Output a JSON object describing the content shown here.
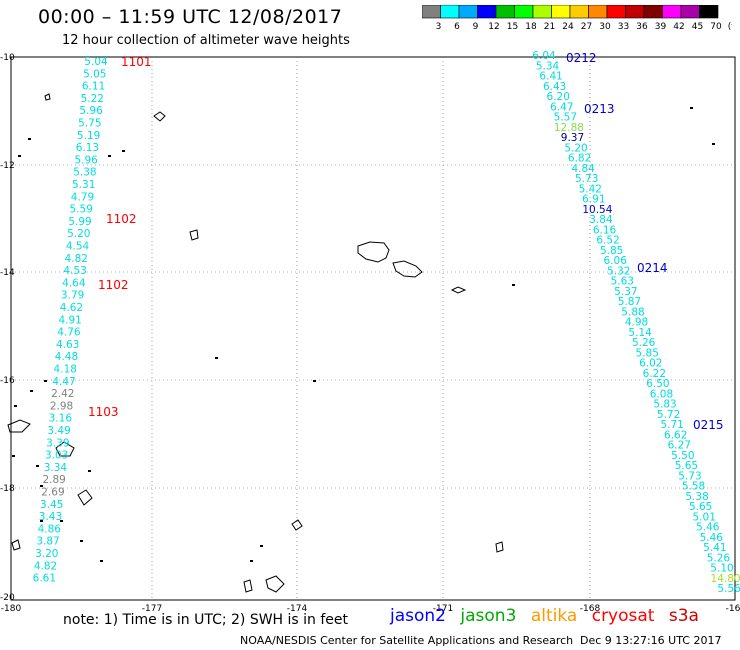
{
  "header": {
    "title": "00:00 – 11:59 UTC 12/08/2017",
    "subtitle": "12 hour collection of altimeter wave heights"
  },
  "colorbar": {
    "colors": [
      "#808080",
      "#00ffff",
      "#00aaff",
      "#0000ff",
      "#00c000",
      "#00ff00",
      "#aaff00",
      "#ffff00",
      "#ffcc00",
      "#ff8800",
      "#ff0000",
      "#c00000",
      "#800000",
      "#ff00ff",
      "#aa00aa",
      "#000000"
    ],
    "labels": [
      "3",
      "6",
      "9",
      "12",
      "15",
      "18",
      "21",
      "24",
      "27",
      "30",
      "33",
      "36",
      "39",
      "42",
      "45",
      "70",
      "(ft)"
    ]
  },
  "map": {
    "x_ticks": [
      "-180",
      "-177",
      "-174",
      "-171",
      "-168",
      "-16"
    ],
    "y_ticks": [
      "-10",
      "-12",
      "-14",
      "-16",
      "-18",
      "-20"
    ]
  },
  "tracks": [
    {
      "color": "#00dddd",
      "values": [
        {
          "t": "5.04",
          "c": "#00dddd"
        },
        {
          "t": "5.05",
          "c": "#00dddd"
        },
        {
          "t": "6.11",
          "c": "#00dddd"
        },
        {
          "t": "5.22",
          "c": "#00dddd"
        },
        {
          "t": "5.96",
          "c": "#00dddd"
        },
        {
          "t": "5.75",
          "c": "#00dddd"
        },
        {
          "t": "5.19",
          "c": "#00dddd"
        },
        {
          "t": "6.13",
          "c": "#00dddd"
        },
        {
          "t": "5.96",
          "c": "#00dddd"
        },
        {
          "t": "5.38",
          "c": "#00dddd"
        },
        {
          "t": "5.31",
          "c": "#00dddd"
        },
        {
          "t": "4.79",
          "c": "#00dddd"
        },
        {
          "t": "5.59",
          "c": "#00dddd"
        },
        {
          "t": "5.99",
          "c": "#00dddd"
        },
        {
          "t": "5.20",
          "c": "#00dddd"
        },
        {
          "t": "4.54",
          "c": "#00dddd"
        },
        {
          "t": "4.82",
          "c": "#00dddd"
        },
        {
          "t": "4.53",
          "c": "#00dddd"
        },
        {
          "t": "4.64",
          "c": "#00dddd"
        },
        {
          "t": "3.79",
          "c": "#00dddd"
        },
        {
          "t": "4.62",
          "c": "#00dddd"
        },
        {
          "t": "4.91",
          "c": "#00dddd"
        },
        {
          "t": "4.76",
          "c": "#00dddd"
        },
        {
          "t": "4.63",
          "c": "#00dddd"
        },
        {
          "t": "4.48",
          "c": "#00dddd"
        },
        {
          "t": "4.18",
          "c": "#00dddd"
        },
        {
          "t": "4.47",
          "c": "#00dddd"
        },
        {
          "t": "2.42",
          "c": "#808080"
        },
        {
          "t": "2.98",
          "c": "#808080"
        },
        {
          "t": "3.16",
          "c": "#00dddd"
        },
        {
          "t": "3.49",
          "c": "#00dddd"
        },
        {
          "t": "3.39",
          "c": "#00dddd"
        },
        {
          "t": "3.03",
          "c": "#00dddd"
        },
        {
          "t": "3.34",
          "c": "#00dddd"
        },
        {
          "t": "2.89",
          "c": "#808080"
        },
        {
          "t": "2.69",
          "c": "#808080"
        },
        {
          "t": "3.45",
          "c": "#00dddd"
        },
        {
          "t": "3.43",
          "c": "#00dddd"
        },
        {
          "t": "4.86",
          "c": "#00dddd"
        },
        {
          "t": "3.87",
          "c": "#00dddd"
        },
        {
          "t": "3.20",
          "c": "#00dddd"
        },
        {
          "t": "4.82",
          "c": "#00dddd"
        },
        {
          "t": "6.61",
          "c": "#00dddd"
        }
      ],
      "labels": [
        {
          "t": "1101",
          "c": "#ff0000"
        },
        {
          "t": "1102",
          "c": "#ff0000"
        },
        {
          "t": "1102",
          "c": "#ff0000"
        },
        {
          "t": "1103",
          "c": "#ff0000"
        }
      ]
    },
    {
      "color": "#00dddd",
      "values": [
        {
          "t": "6.04",
          "c": "#00dddd"
        },
        {
          "t": "5.34",
          "c": "#00dddd"
        },
        {
          "t": "6.41",
          "c": "#00dddd"
        },
        {
          "t": "6.43",
          "c": "#00dddd"
        },
        {
          "t": "6.20",
          "c": "#00dddd"
        },
        {
          "t": "6.47",
          "c": "#00dddd"
        },
        {
          "t": "5.57",
          "c": "#00dddd"
        },
        {
          "t": "12.88",
          "c": "#88dd44"
        },
        {
          "t": "9.37",
          "c": "#000080"
        },
        {
          "t": "5.20",
          "c": "#00dddd"
        },
        {
          "t": "6.82",
          "c": "#00dddd"
        },
        {
          "t": "4.84",
          "c": "#00dddd"
        },
        {
          "t": "5.73",
          "c": "#00dddd"
        },
        {
          "t": "5.42",
          "c": "#00dddd"
        },
        {
          "t": "6.91",
          "c": "#00dddd"
        },
        {
          "t": "10.54",
          "c": "#0000cc"
        },
        {
          "t": "3.84",
          "c": "#00dddd"
        },
        {
          "t": "6.16",
          "c": "#00dddd"
        },
        {
          "t": "6.52",
          "c": "#00dddd"
        },
        {
          "t": "5.85",
          "c": "#00dddd"
        },
        {
          "t": "6.06",
          "c": "#00dddd"
        },
        {
          "t": "5.32",
          "c": "#00dddd"
        },
        {
          "t": "5.63",
          "c": "#00dddd"
        },
        {
          "t": "5.37",
          "c": "#00dddd"
        },
        {
          "t": "5.87",
          "c": "#00dddd"
        },
        {
          "t": "5.88",
          "c": "#00dddd"
        },
        {
          "t": "4.98",
          "c": "#00dddd"
        },
        {
          "t": "5.14",
          "c": "#00dddd"
        },
        {
          "t": "5.26",
          "c": "#00dddd"
        },
        {
          "t": "5.85",
          "c": "#00dddd"
        },
        {
          "t": "6.02",
          "c": "#00dddd"
        },
        {
          "t": "6.22",
          "c": "#00dddd"
        },
        {
          "t": "6.50",
          "c": "#00dddd"
        },
        {
          "t": "6.08",
          "c": "#00dddd"
        },
        {
          "t": "5.83",
          "c": "#00dddd"
        },
        {
          "t": "5.72",
          "c": "#00dddd"
        },
        {
          "t": "5.71",
          "c": "#00dddd"
        },
        {
          "t": "6.62",
          "c": "#00dddd"
        },
        {
          "t": "6.27",
          "c": "#00dddd"
        },
        {
          "t": "5.50",
          "c": "#00dddd"
        },
        {
          "t": "5.65",
          "c": "#00dddd"
        },
        {
          "t": "5.73",
          "c": "#00dddd"
        },
        {
          "t": "5.58",
          "c": "#00dddd"
        },
        {
          "t": "5.38",
          "c": "#00dddd"
        },
        {
          "t": "5.65",
          "c": "#00dddd"
        },
        {
          "t": "5.01",
          "c": "#00dddd"
        },
        {
          "t": "5.46",
          "c": "#00dddd"
        },
        {
          "t": "5.46",
          "c": "#00dddd"
        },
        {
          "t": "5.41",
          "c": "#00dddd"
        },
        {
          "t": "5.26",
          "c": "#00dddd"
        },
        {
          "t": "5.10",
          "c": "#00dddd"
        },
        {
          "t": "14.80",
          "c": "#aadd22"
        },
        {
          "t": "5.56",
          "c": "#00dddd"
        }
      ],
      "labels": [
        {
          "t": "0212",
          "c": "#0000cc"
        },
        {
          "t": "0213",
          "c": "#0000cc"
        },
        {
          "t": "0214",
          "c": "#0000cc"
        },
        {
          "t": "0215",
          "c": "#0000cc"
        }
      ]
    }
  ],
  "footer": {
    "note": "note:  1) Time is in UTC;  2) SWH is in feet",
    "satellites": [
      {
        "name": "jason2",
        "color": "#0000ff"
      },
      {
        "name": "jason3",
        "color": "#00aa00"
      },
      {
        "name": "altika",
        "color": "#ff9900"
      },
      {
        "name": "cryosat",
        "color": "#ff0000"
      },
      {
        "name": "s3a",
        "color": "#cc0000"
      }
    ],
    "credit": "NOAA/NESDIS Center for Satellite Applications and Research",
    "stamp": "Dec  9 13:27:16 UTC 2017"
  }
}
